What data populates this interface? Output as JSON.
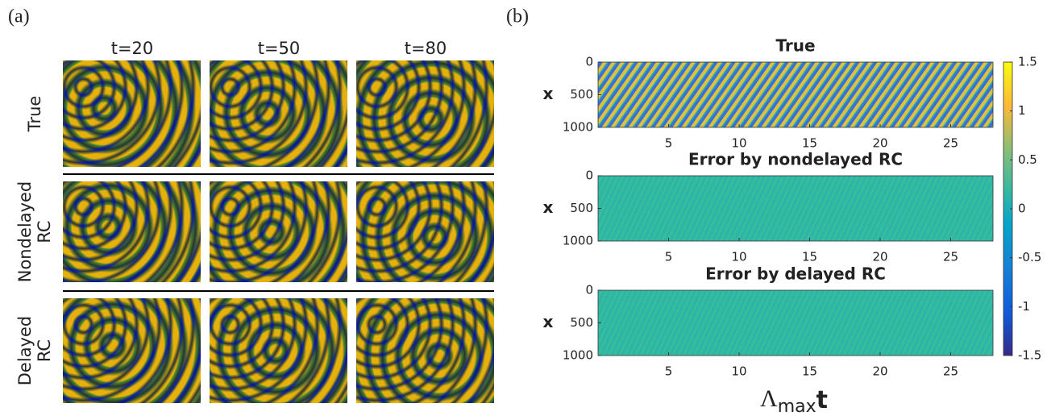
{
  "panel_a": {
    "label": "(a)",
    "columns": [
      "t=20",
      "t=50",
      "t=80"
    ],
    "rows": [
      [
        "True"
      ],
      [
        "Nondelayed",
        "RC"
      ],
      [
        "Delayed",
        "RC"
      ]
    ]
  },
  "panel_b": {
    "label": "(b)",
    "xlabel": {
      "symbol": "Λ",
      "sub": "max",
      "tail": "t"
    }
  },
  "chart_data": [
    {
      "type": "heatmap",
      "title": "True",
      "ylabel": "x",
      "xlim": [
        0,
        28
      ],
      "xticks": [
        5,
        10,
        15,
        20,
        25
      ],
      "ylim": [
        0,
        1000
      ],
      "yticks": [
        0,
        500,
        1000
      ],
      "y_reversed": true
    },
    {
      "type": "heatmap",
      "title": "Error by nondelayed RC",
      "ylabel": "x",
      "xlim": [
        0,
        28
      ],
      "xticks": [
        5,
        10,
        15,
        20,
        25
      ],
      "ylim": [
        0,
        1000
      ],
      "yticks": [
        0,
        500,
        1000
      ],
      "y_reversed": true
    },
    {
      "type": "heatmap",
      "title": "Error by delayed RC",
      "ylabel": "x",
      "xlim": [
        0,
        28
      ],
      "xticks": [
        5,
        10,
        15,
        20,
        25
      ],
      "ylim": [
        0,
        1000
      ],
      "yticks": [
        0,
        500,
        1000
      ],
      "y_reversed": true
    }
  ],
  "colorbar": {
    "lim": [
      -1.5,
      1.5
    ],
    "ticks": [
      1.5,
      1,
      0.5,
      0,
      -0.5,
      -1,
      -1.5
    ]
  }
}
